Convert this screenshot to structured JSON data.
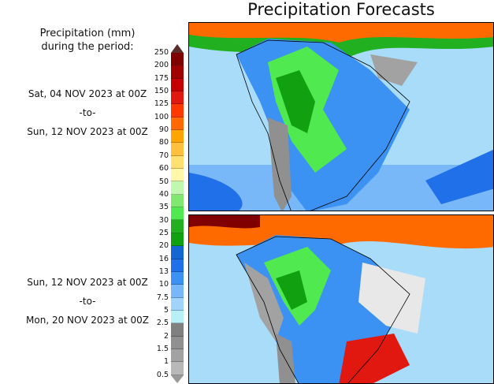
{
  "title": "Precipitation Forecasts",
  "legend": {
    "title_line1": "Precipitation (mm)",
    "title_line2": "during the period:",
    "labels": [
      "250",
      "200",
      "175",
      "150",
      "125",
      "100",
      "90",
      "80",
      "70",
      "60",
      "50",
      "40",
      "35",
      "30",
      "25",
      "20",
      "16",
      "13",
      "10",
      "7.5",
      "5",
      "2.5",
      "2",
      "1.5",
      "1",
      "0.5"
    ],
    "colors": [
      "#800000",
      "#a00000",
      "#c40000",
      "#e01810",
      "#ff3800",
      "#ff6a00",
      "#ffa400",
      "#ffc040",
      "#ffe070",
      "#fff8aa",
      "#c0f8b0",
      "#80e870",
      "#50ea50",
      "#22b022",
      "#10a010",
      "#1466d0",
      "#2070ea",
      "#3c92f2",
      "#78b8f8",
      "#a0d4fa",
      "#b8f0f8",
      "#808080",
      "#909090",
      "#a2a2a2",
      "#b8b8b8"
    ],
    "top_arrow_color": "#5a2e2a"
  },
  "periods": [
    {
      "start": "Sat, 04 NOV 2023 at 00Z",
      "sep": "-to-",
      "end": "Sun, 12 NOV 2023 at 00Z"
    },
    {
      "start": "Sun, 12 NOV 2023 at 00Z",
      "sep": "-to-",
      "end": "Mon, 20 NOV 2023 at 00Z"
    }
  ]
}
